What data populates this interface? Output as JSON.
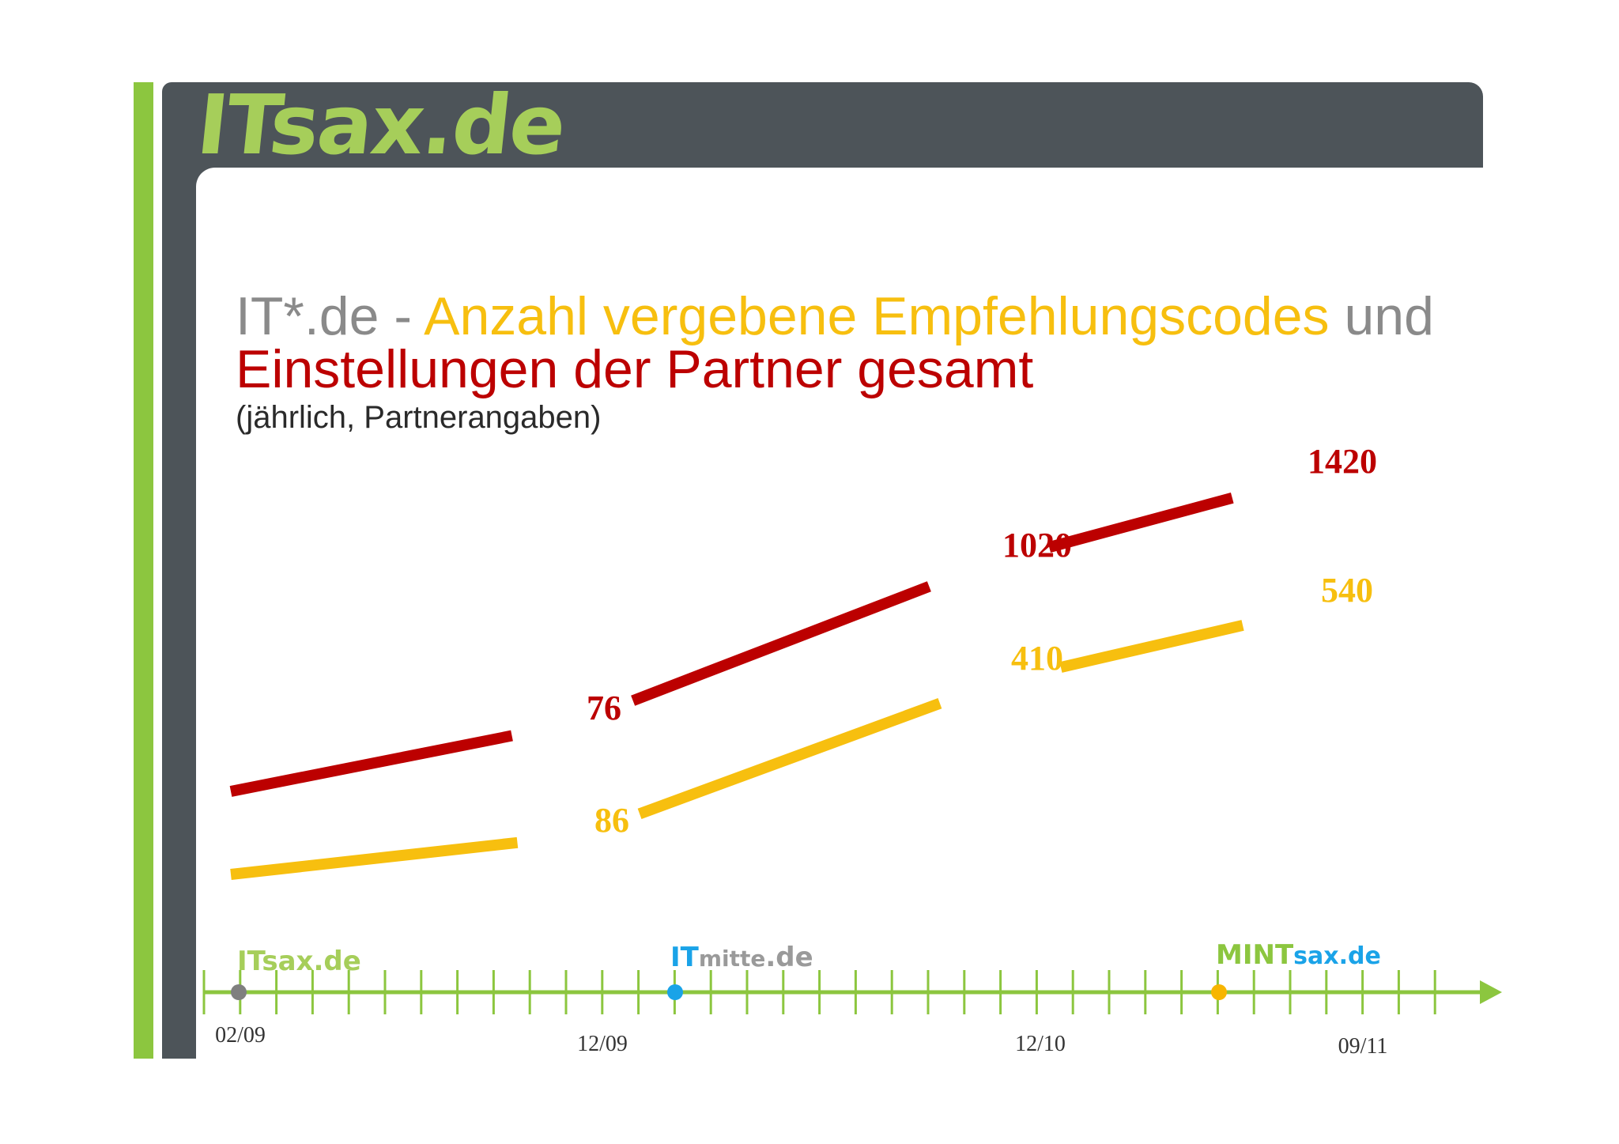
{
  "logo": "ITsax.de",
  "title": {
    "part1": "IT*.de - ",
    "part2": "Anzahl vergebene Empfehlungscodes",
    "part3": " und",
    "line2": "Einstellungen der Partner gesamt",
    "subtitle": "(jährlich, Partnerangaben)"
  },
  "colors": {
    "red": "#bc0000",
    "yellow": "#f7bf0f",
    "grey": "#8a8a8a",
    "green": "#8cc63f",
    "frame": "#4d5459",
    "blue": "#1aa3e8",
    "orange": "#f7b500"
  },
  "timeline": {
    "brands": [
      {
        "name": "ITsax.de",
        "dot_color": "#7f7f7f"
      },
      {
        "name_a": "IT",
        "name_b": "mitte",
        "name_c": ".de",
        "dot_color": "#1aa3e8"
      },
      {
        "name_a": "MINT",
        "name_b": "sax.de",
        "dot_color": "#f7b500"
      }
    ]
  },
  "chart_data": {
    "type": "line",
    "categories": [
      "02/09",
      "12/09",
      "12/10",
      "09/11"
    ],
    "series": [
      {
        "color": "#bc0000",
        "values": [
          null,
          76,
          1020,
          1420
        ],
        "labels": [
          "",
          "76",
          "1020",
          "1420"
        ]
      },
      {
        "color": "#f7bf0f",
        "values": [
          null,
          86,
          410,
          540
        ],
        "labels": [
          "",
          "86",
          "410",
          "540"
        ]
      }
    ],
    "title": "IT*.de - Anzahl vergebene Empfehlungscodes und Einstellungen der Partner gesamt",
    "subtitle": "(jährlich, Partnerangaben)",
    "xlabel": "",
    "ylabel": "",
    "grid": false,
    "axis": "timeline-arrow"
  }
}
